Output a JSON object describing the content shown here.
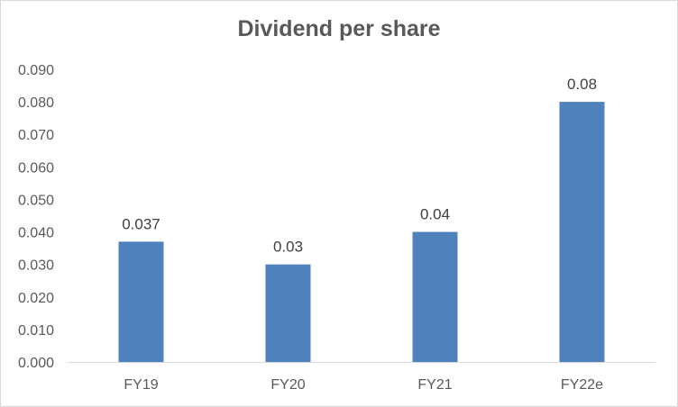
{
  "chart_data": {
    "type": "bar",
    "title": "Dividend per share",
    "categories": [
      "FY19",
      "FY20",
      "FY21",
      "FY22e"
    ],
    "values": [
      0.037,
      0.03,
      0.04,
      0.08
    ],
    "data_labels": [
      "0.037",
      "0.03",
      "0.04",
      "0.08"
    ],
    "y_ticks": [
      "0.000",
      "0.010",
      "0.020",
      "0.030",
      "0.040",
      "0.050",
      "0.060",
      "0.070",
      "0.080",
      "0.090"
    ],
    "ylim": [
      0,
      0.09
    ],
    "xlabel": "",
    "ylabel": "",
    "grid": false,
    "legend": "none",
    "bar_color": "#4f81bd"
  }
}
